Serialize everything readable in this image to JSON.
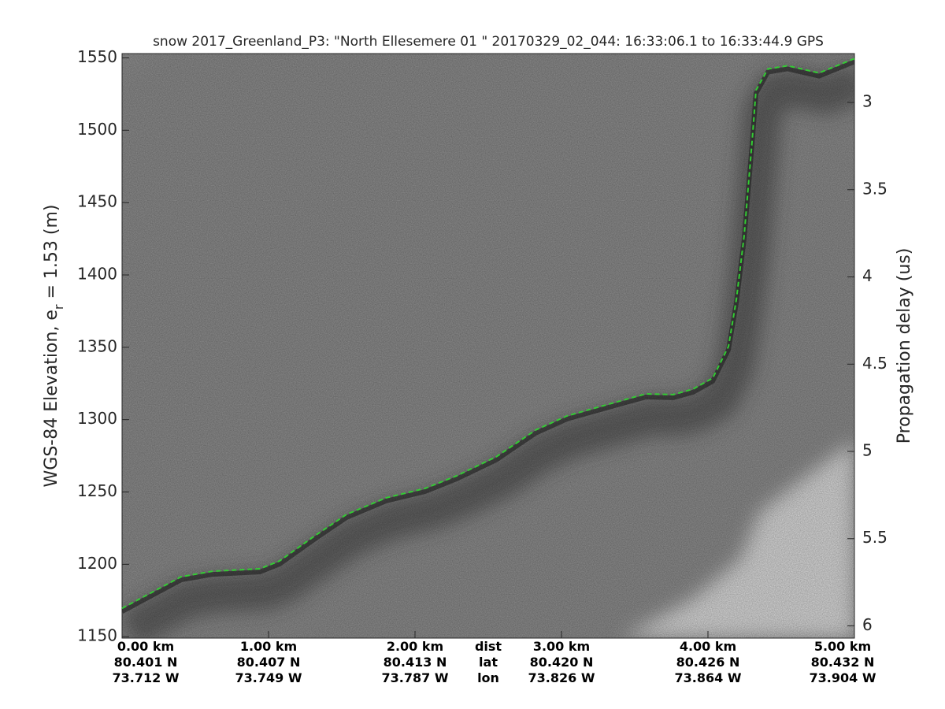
{
  "chart_data": {
    "type": "line",
    "title": "snow 2017_Greenland_P3: \"North Ellesemere 01 \"  20170329_02_044: 16:33:06.1 to 16:33:44.9 GPS",
    "ylabel": [
      "WGS-84 Elevation, e",
      "r",
      " = 1.53 (m)"
    ],
    "y2label": "Propagation delay (us)",
    "xlim": [
      0,
      5
    ],
    "xticks": [
      {
        "value": 0,
        "label": "0.00 km"
      },
      {
        "value": 1,
        "label": "1.00 km"
      },
      {
        "value": 2,
        "label": "2.00 km"
      },
      {
        "value": 3,
        "label": "3.00 km"
      },
      {
        "value": 4,
        "label": "4.00 km"
      },
      {
        "value": 5,
        "label": "5.00 km"
      }
    ],
    "lat": [
      "80.401 N",
      "80.407 N",
      "80.413 N",
      "80.420 N",
      "80.426 N",
      "80.432 N"
    ],
    "lon": [
      "73.712 W",
      "73.749 W",
      "73.787 W",
      "73.826 W",
      "73.864 W",
      "73.904 W"
    ],
    "row_labels": [
      "dist",
      "lat",
      "lon"
    ],
    "ylim": [
      1149,
      1553
    ],
    "yticks": [
      1150,
      1200,
      1250,
      1300,
      1350,
      1400,
      1450,
      1500,
      1550
    ],
    "y2lim": [
      6.07,
      2.72
    ],
    "y2ticks": [
      3,
      3.5,
      4,
      4.5,
      5,
      5.5,
      6
    ],
    "series": [
      {
        "name": "surface",
        "color": "#33cc33",
        "x": [
          0,
          0.403,
          0.618,
          0.941,
          1.075,
          1.317,
          1.532,
          1.801,
          2.07,
          2.285,
          2.554,
          2.823,
          3.038,
          3.306,
          3.575,
          3.763,
          3.898,
          4.032,
          4.14,
          4.194,
          4.247,
          4.301,
          4.328,
          4.409,
          4.543,
          4.758,
          5.0
        ],
        "values": [
          1169.6,
          1191.4,
          1195.2,
          1196.9,
          1202.3,
          1219.8,
          1234.5,
          1245.9,
          1252.5,
          1261.2,
          1274.3,
          1292.8,
          1302.6,
          1310.2,
          1317.8,
          1317.3,
          1321.1,
          1328.7,
          1350.5,
          1383.2,
          1426.8,
          1492.2,
          1527.7,
          1542.4,
          1544.6,
          1539.6,
          1549.5
        ]
      }
    ]
  }
}
